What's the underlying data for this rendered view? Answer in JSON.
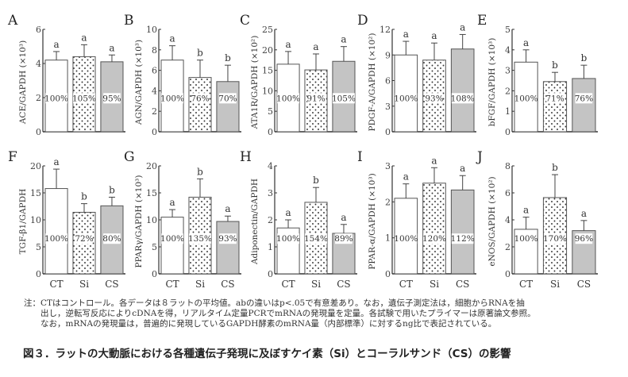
{
  "colors": {
    "ct_fill": "#ffffff",
    "si_fill": "#ffffff",
    "si_dot": "#333333",
    "cs_fill": "#c4c4c4",
    "axis": "#333333",
    "bar_stroke": "#555555"
  },
  "x_categories": [
    "CT",
    "Si",
    "CS"
  ],
  "chart_data": [
    {
      "type": "bar",
      "panel": "A",
      "ylabel": "ACE/GAPDH (×10³)",
      "ylim": [
        0,
        6
      ],
      "yticks": [
        0,
        2,
        4,
        6
      ],
      "categories": [
        "CT",
        "Si",
        "CS"
      ],
      "values": [
        4.2,
        4.4,
        4.1
      ],
      "errors": [
        0.5,
        0.7,
        0.4
      ],
      "letters": [
        "a",
        "a",
        "a"
      ],
      "percent_labels": [
        "100%",
        "105%",
        "95%"
      ]
    },
    {
      "type": "bar",
      "panel": "B",
      "ylabel": "AGN/GAPDH (×10³)",
      "ylim": [
        0,
        10
      ],
      "yticks": [
        0,
        2,
        4,
        6,
        8,
        10
      ],
      "categories": [
        "CT",
        "Si",
        "CS"
      ],
      "values": [
        7.0,
        5.3,
        4.9
      ],
      "errors": [
        1.4,
        1.7,
        1.6
      ],
      "letters": [
        "a",
        "b",
        "b"
      ],
      "percent_labels": [
        "100%",
        "76%",
        "70%"
      ]
    },
    {
      "type": "bar",
      "panel": "C",
      "ylabel": "ATA1R/GAPDH (×10²)",
      "ylim": [
        0,
        25
      ],
      "yticks": [
        0,
        5,
        10,
        15,
        20,
        25
      ],
      "categories": [
        "CT",
        "Si",
        "CS"
      ],
      "values": [
        16.5,
        15.1,
        17.2
      ],
      "errors": [
        3.1,
        3.9,
        3.6
      ],
      "letters": [
        "a",
        "a",
        "a"
      ],
      "percent_labels": [
        "100%",
        "91%",
        "105%"
      ]
    },
    {
      "type": "bar",
      "panel": "D",
      "ylabel": "PDGF-A/GAPDH (×10²)",
      "ylim": [
        0,
        12
      ],
      "yticks": [
        0,
        3,
        6,
        9,
        12
      ],
      "categories": [
        "CT",
        "Si",
        "CS"
      ],
      "values": [
        9.0,
        8.4,
        9.7
      ],
      "errors": [
        1.6,
        2.0,
        1.7
      ],
      "letters": [
        "a",
        "a",
        "a"
      ],
      "percent_labels": [
        "100%",
        "93%",
        "108%"
      ]
    },
    {
      "type": "bar",
      "panel": "E",
      "ylabel": "bFGF/GAPDH (×10³)",
      "ylim": [
        0,
        5
      ],
      "yticks": [
        0,
        1,
        2,
        3,
        4,
        5
      ],
      "categories": [
        "CT",
        "Si",
        "CS"
      ],
      "values": [
        3.4,
        2.45,
        2.6
      ],
      "errors": [
        0.6,
        0.45,
        0.65
      ],
      "letters": [
        "a",
        "b",
        "b"
      ],
      "percent_labels": [
        "100%",
        "71%",
        "76%"
      ]
    },
    {
      "type": "bar",
      "panel": "F",
      "ylabel": "TGF-β1/GAPDH",
      "ylim": [
        0,
        20
      ],
      "yticks": [
        0,
        5,
        10,
        15,
        20
      ],
      "categories": [
        "CT",
        "Si",
        "CS"
      ],
      "values": [
        15.8,
        11.4,
        12.6
      ],
      "errors": [
        3.6,
        1.6,
        1.6
      ],
      "letters": [
        "a",
        "b",
        "b"
      ],
      "percent_labels": [
        "100%",
        "72%",
        "80%"
      ]
    },
    {
      "type": "bar",
      "panel": "G",
      "ylabel": "PPARγ/GAPDH (×10³)",
      "ylim": [
        0,
        20
      ],
      "yticks": [
        0,
        5,
        10,
        15,
        20
      ],
      "categories": [
        "CT",
        "Si",
        "CS"
      ],
      "values": [
        10.5,
        14.2,
        9.7
      ],
      "errors": [
        1.4,
        3.4,
        1.0
      ],
      "letters": [
        "a",
        "b",
        "a"
      ],
      "percent_labels": [
        "100%",
        "135%",
        "93%"
      ]
    },
    {
      "type": "bar",
      "panel": "H",
      "ylabel": "Adiponectin/GAPDH",
      "ylim": [
        0,
        4
      ],
      "yticks": [
        0,
        1,
        2,
        3,
        4
      ],
      "categories": [
        "CT",
        "Si",
        "CS"
      ],
      "values": [
        1.7,
        2.65,
        1.5
      ],
      "errors": [
        0.3,
        0.55,
        0.33
      ],
      "letters": [
        "a",
        "b",
        "a"
      ],
      "percent_labels": [
        "100%",
        "154%",
        "89%"
      ]
    },
    {
      "type": "bar",
      "panel": "I",
      "ylabel": "PPAR-α/GAPDH (×10³)",
      "ylim": [
        0,
        3
      ],
      "yticks": [
        0,
        1,
        2,
        3
      ],
      "categories": [
        "CT",
        "Si",
        "CS"
      ],
      "values": [
        2.1,
        2.52,
        2.33
      ],
      "errors": [
        0.4,
        0.43,
        0.4
      ],
      "letters": [
        "a",
        "a",
        "a"
      ],
      "percent_labels": [
        "100%",
        "120%",
        "112%"
      ]
    },
    {
      "type": "bar",
      "panel": "J",
      "ylabel": "eNOS/GAPDH (×10²)",
      "ylim": [
        0,
        8
      ],
      "yticks": [
        0,
        2,
        4,
        6,
        8
      ],
      "categories": [
        "CT",
        "Si",
        "CS"
      ],
      "values": [
        3.3,
        5.65,
        3.2
      ],
      "errors": [
        0.9,
        1.7,
        0.75
      ],
      "letters": [
        "a",
        "b",
        "a"
      ],
      "percent_labels": [
        "100%",
        "170%",
        "96%"
      ]
    }
  ],
  "notes": {
    "line1": "注：CTはコントロール。各データは８ラットの平均値。abの違いはp<.05で有意差あり。なお，遺伝子測定法は，細胞からRNAを抽",
    "line2": "　　出し，逆転写反応によりcDNAを得，リアルタイム定量PCRでmRNAの発現量を定量。各試験で用いたプライマーは原著論文参照。",
    "line3": "　　なお，mRNAの発現量は，普遍的に発現しているGAPDH酵素のmRNA量（内部標準）に対するng比で表記されている。"
  },
  "caption": "図３．ラットの大動脈における各種遺伝子発現に及ぼすケイ素（Si）とコーラルサンド（CS）の影響"
}
